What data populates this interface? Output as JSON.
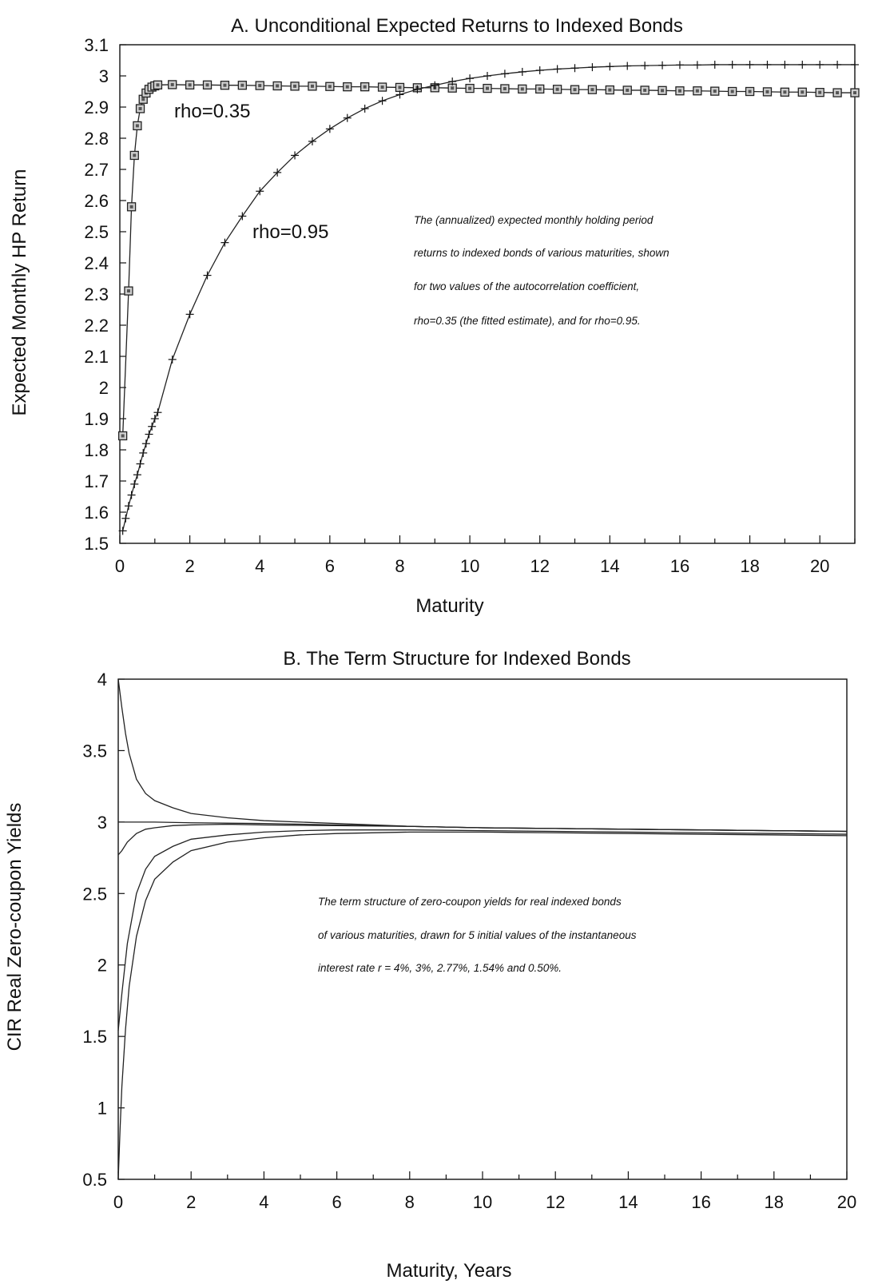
{
  "chart_data": [
    {
      "type": "line",
      "title": "A. Unconditional Expected Returns to Indexed Bonds",
      "xlabel": "Maturity",
      "ylabel": "Expected Monthly HP Return",
      "xlim": [
        0,
        21
      ],
      "ylim": [
        1.5,
        3.1
      ],
      "xticks": [
        0,
        2,
        4,
        6,
        8,
        10,
        12,
        14,
        16,
        18,
        20
      ],
      "yticks": [
        1.5,
        1.6,
        1.7,
        1.8,
        1.9,
        2,
        2.1,
        2.2,
        2.3,
        2.4,
        2.5,
        2.6,
        2.7,
        2.8,
        2.9,
        3,
        3.1
      ],
      "grid": false,
      "series": [
        {
          "name": "rho=0.35",
          "marker": "square",
          "x": [
            0.083,
            0.25,
            0.333,
            0.417,
            0.5,
            0.583,
            0.667,
            0.75,
            0.833,
            0.917,
            1.0,
            1.083,
            1.5,
            2,
            2.5,
            3,
            3.5,
            4,
            4.5,
            5,
            5.5,
            6,
            6.5,
            7,
            7.5,
            8,
            8.5,
            9,
            9.5,
            10,
            10.5,
            11,
            11.5,
            12,
            12.5,
            13,
            13.5,
            14,
            14.5,
            15,
            15.5,
            16,
            16.5,
            17,
            17.5,
            18,
            18.5,
            19,
            19.5,
            20,
            20.5,
            21
          ],
          "y": [
            1.845,
            2.31,
            2.58,
            2.745,
            2.84,
            2.895,
            2.925,
            2.945,
            2.957,
            2.964,
            2.968,
            2.971,
            2.972,
            2.971,
            2.971,
            2.97,
            2.97,
            2.969,
            2.968,
            2.967,
            2.967,
            2.966,
            2.965,
            2.965,
            2.964,
            2.963,
            2.962,
            2.962,
            2.961,
            2.96,
            2.96,
            2.959,
            2.958,
            2.958,
            2.957,
            2.956,
            2.956,
            2.955,
            2.954,
            2.954,
            2.953,
            2.952,
            2.952,
            2.951,
            2.95,
            2.95,
            2.949,
            2.948,
            2.948,
            2.947,
            2.946,
            2.946
          ]
        },
        {
          "name": "rho=0.95",
          "marker": "plus",
          "x": [
            0.083,
            0.167,
            0.25,
            0.333,
            0.417,
            0.5,
            0.583,
            0.667,
            0.75,
            0.833,
            0.917,
            1.0,
            1.083,
            1.5,
            2,
            2.5,
            3,
            3.5,
            4,
            4.5,
            5,
            5.5,
            6,
            6.5,
            7,
            7.5,
            8,
            8.5,
            9,
            9.5,
            10,
            10.5,
            11,
            11.5,
            12,
            12.5,
            13,
            13.5,
            14,
            14.5,
            15,
            15.5,
            16,
            16.5,
            17,
            17.5,
            18,
            18.5,
            19,
            19.5,
            20,
            20.5,
            21
          ],
          "y": [
            1.54,
            1.58,
            1.62,
            1.655,
            1.69,
            1.72,
            1.755,
            1.79,
            1.82,
            1.85,
            1.875,
            1.9,
            1.92,
            2.09,
            2.235,
            2.36,
            2.465,
            2.55,
            2.63,
            2.69,
            2.745,
            2.79,
            2.83,
            2.865,
            2.895,
            2.92,
            2.94,
            2.957,
            2.97,
            2.982,
            2.992,
            3.0,
            3.007,
            3.013,
            3.018,
            3.022,
            3.025,
            3.028,
            3.03,
            3.032,
            3.033,
            3.034,
            3.035,
            3.035,
            3.036,
            3.036,
            3.036,
            3.036,
            3.036,
            3.036,
            3.036,
            3.036,
            3.036
          ]
        }
      ],
      "annotation_lines": [
        "The (annualized) expected monthly holding period",
        "returns to indexed bonds of various maturities, shown",
        "for two values of the autocorrelation coefficient,",
        "rho=0.35 (the fitted estimate), and for rho=0.95."
      ]
    },
    {
      "type": "line",
      "title": "B. The Term Structure for Indexed Bonds",
      "xlabel": "Maturity, Years",
      "ylabel": "CIR Real Zero-coupon Yields",
      "xlim": [
        0,
        20
      ],
      "ylim": [
        0.5,
        4
      ],
      "xticks": [
        0,
        2,
        4,
        6,
        8,
        10,
        12,
        14,
        16,
        18,
        20
      ],
      "yticks": [
        0.5,
        1,
        1.5,
        2,
        2.5,
        3,
        3.5,
        4
      ],
      "grid": false,
      "series": [
        {
          "x": [
            0,
            0.1,
            0.2,
            0.3,
            0.5,
            0.75,
            1,
            1.5,
            2,
            3,
            4,
            5,
            6,
            8,
            10,
            12,
            14,
            16,
            18,
            20
          ],
          "y": [
            4.0,
            3.8,
            3.62,
            3.48,
            3.3,
            3.2,
            3.15,
            3.1,
            3.06,
            3.03,
            3.01,
            3.0,
            2.99,
            2.97,
            2.96,
            2.955,
            2.95,
            2.945,
            2.94,
            2.935
          ]
        },
        {
          "x": [
            0,
            0.5,
            1,
            2,
            4,
            6,
            8,
            10,
            12,
            14,
            16,
            18,
            20
          ],
          "y": [
            3.0,
            3.0,
            3.0,
            2.995,
            2.99,
            2.98,
            2.97,
            2.96,
            2.955,
            2.95,
            2.945,
            2.94,
            2.935
          ]
        },
        {
          "x": [
            0,
            0.1,
            0.25,
            0.5,
            0.75,
            1,
            1.5,
            2,
            3,
            4,
            6,
            8,
            10,
            12,
            14,
            16,
            18,
            20
          ],
          "y": [
            2.77,
            2.8,
            2.86,
            2.92,
            2.95,
            2.96,
            2.975,
            2.98,
            2.985,
            2.98,
            2.975,
            2.97,
            2.96,
            2.955,
            2.95,
            2.945,
            2.94,
            2.935
          ]
        },
        {
          "x": [
            0,
            0.1,
            0.25,
            0.5,
            0.75,
            1,
            1.5,
            2,
            3,
            4,
            5,
            6,
            8,
            10,
            12,
            14,
            16,
            18,
            20
          ],
          "y": [
            1.54,
            1.8,
            2.15,
            2.5,
            2.67,
            2.76,
            2.83,
            2.88,
            2.91,
            2.93,
            2.94,
            2.945,
            2.945,
            2.94,
            2.935,
            2.93,
            2.925,
            2.92,
            2.915
          ]
        },
        {
          "x": [
            0,
            0.05,
            0.1,
            0.2,
            0.3,
            0.5,
            0.75,
            1,
            1.5,
            2,
            3,
            4,
            5,
            6,
            8,
            10,
            12,
            14,
            16,
            18,
            20
          ],
          "y": [
            0.5,
            0.85,
            1.15,
            1.55,
            1.85,
            2.2,
            2.45,
            2.6,
            2.72,
            2.8,
            2.86,
            2.89,
            2.91,
            2.92,
            2.93,
            2.93,
            2.925,
            2.92,
            2.915,
            2.91,
            2.905
          ]
        }
      ],
      "annotation_lines": [
        "The term structure of zero-coupon yields for real indexed bonds",
        "of various maturities, drawn for 5 initial values of the instantaneous",
        "interest rate r = 4%, 3%, 2.77%, 1.54% and 0.50%."
      ]
    }
  ]
}
